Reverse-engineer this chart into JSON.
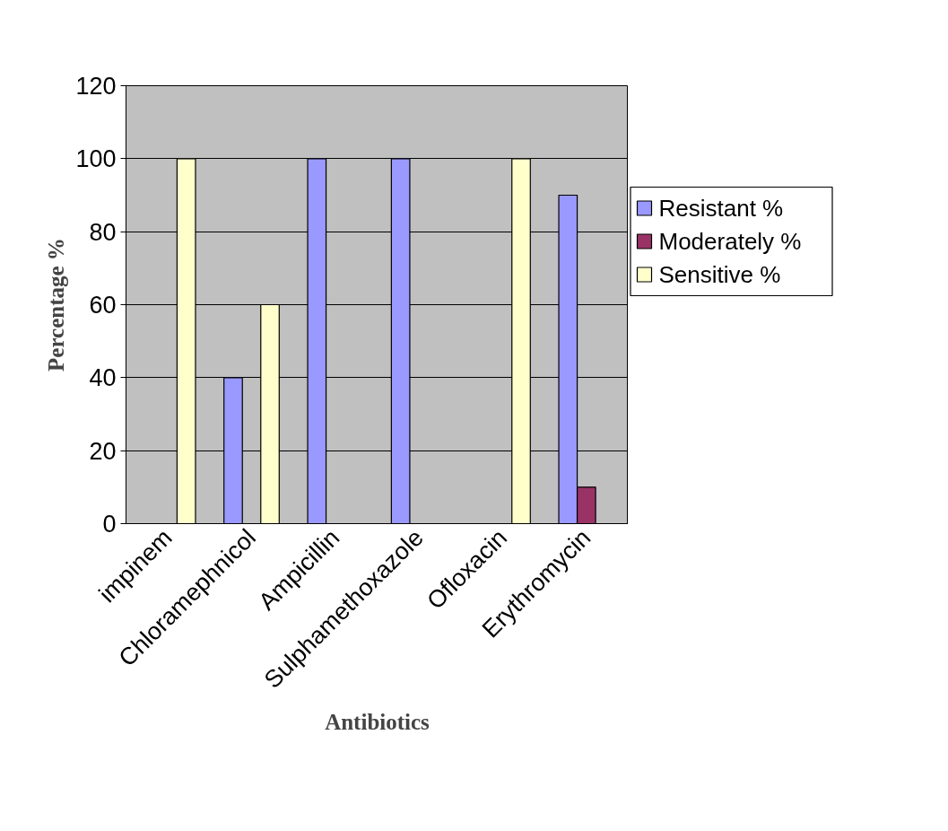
{
  "chart_data": {
    "type": "bar",
    "xlabel": "Antibiotics",
    "ylabel": "Percentage %",
    "categories": [
      "impinem",
      "Chloramephnicol",
      "Ampicillin",
      "Sulphamethoxazole",
      "Ofloxacin",
      "Erythromycin"
    ],
    "series": [
      {
        "name": "Resistant %",
        "color": "#9999ff",
        "values": [
          null,
          40,
          100,
          100,
          null,
          90
        ]
      },
      {
        "name": "Moderately %",
        "color": "#993366",
        "values": [
          null,
          null,
          null,
          null,
          null,
          10
        ]
      },
      {
        "name": "Sensitive  %",
        "color": "#ffffcc",
        "values": [
          100,
          60,
          null,
          null,
          100,
          null
        ]
      }
    ],
    "ylim": [
      0,
      120
    ],
    "yticks": [
      0,
      20,
      40,
      60,
      80,
      100,
      120
    ],
    "grid": "y",
    "legend": "right"
  }
}
